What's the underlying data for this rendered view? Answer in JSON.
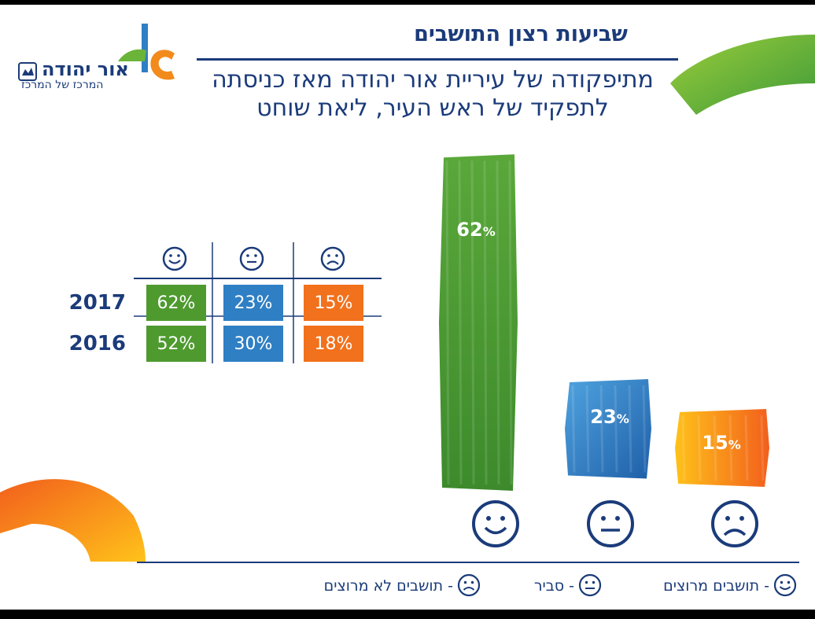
{
  "header": {
    "title": "שביעות רצון התושבים",
    "subtitle_line1": "מתיפקודה של עיריית אור יהודה מאז כניסתה",
    "subtitle_line2": "לתפקיד של ראש  העיר, ליאת שוחט"
  },
  "logo": {
    "name": "אור יהודה",
    "tagline": "המרכז של המרכז"
  },
  "table": {
    "icons": [
      "smiley-icon",
      "neutral-face-icon",
      "frown-face-icon"
    ],
    "rows": [
      {
        "year": "2017",
        "values": [
          "62%",
          "23%",
          "15%"
        ]
      },
      {
        "year": "2016",
        "values": [
          "52%",
          "30%",
          "18%"
        ]
      }
    ]
  },
  "chart_data": {
    "type": "bar",
    "categories": [
      "תושבים מרוצים",
      "סביר",
      "תושבים לא מרוצים"
    ],
    "values": [
      62,
      23,
      15
    ],
    "labels": [
      "62",
      "23",
      "15"
    ],
    "unit": "%",
    "colors": [
      "#4e9a2f",
      "#2f7fc4",
      "#f28a1c"
    ]
  },
  "legend": {
    "satisfied": "- תושבים מרוצים",
    "neutral": "- סביר",
    "unsatisfied": "- תושבים לא מרוצים"
  },
  "colors": {
    "navy": "#1b3b7a",
    "green": "#4e9a2f",
    "blue": "#2f7fc4",
    "orange": "#f28a1c"
  }
}
